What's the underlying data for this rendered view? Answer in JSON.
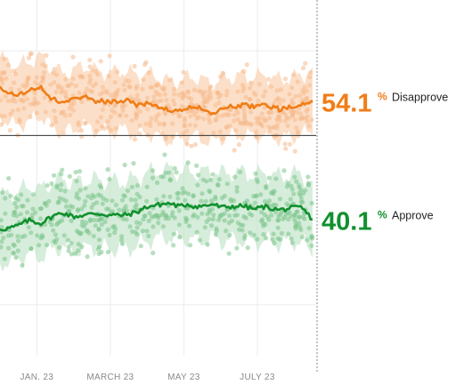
{
  "chart_data": {
    "type": "line",
    "title": "",
    "xlabel": "",
    "ylabel": "",
    "x_tick_labels": [
      "JAN. 23",
      "MARCH 23",
      "MAY 23",
      "JULY 23"
    ],
    "x_tick_positions": [
      0,
      2,
      4,
      6
    ],
    "x_range": [
      -1.0,
      7.6
    ],
    "ylim": [
      24,
      66
    ],
    "grid": true,
    "reference_line": 50,
    "colors": {
      "Disapprove": "#f07d16",
      "Approve": "#11902e",
      "disapprove_band": "#fbd2b0",
      "approve_band": "#c5e5cc",
      "disapprove_dots": "#f6b98c",
      "approve_dots": "#7cc48a",
      "grid": "#ececec",
      "reference": "#333333",
      "axis_text": "#8a8a8a"
    },
    "series": [
      {
        "name": "Disapprove",
        "latest_value": "54.1",
        "unit": "%",
        "x": [
          -1.0,
          -0.6,
          -0.2,
          0.1,
          0.4,
          0.7,
          1.0,
          1.3,
          1.6,
          2.0,
          2.4,
          2.7,
          3.0,
          3.3,
          3.6,
          3.9,
          4.1,
          4.3,
          4.6,
          4.8,
          5.0,
          5.3,
          5.6,
          5.9,
          6.2,
          6.6,
          6.9,
          7.2,
          7.5
        ],
        "values": [
          55.8,
          54.6,
          55.2,
          55.9,
          54.4,
          53.9,
          54.2,
          54.8,
          54.1,
          53.9,
          54.2,
          53.6,
          53.8,
          53.4,
          52.9,
          53.0,
          53.3,
          53.4,
          52.9,
          52.6,
          53.2,
          53.4,
          53.6,
          53.4,
          53.6,
          53.1,
          53.3,
          53.6,
          54.1
        ],
        "band_half_width": 3.5
      },
      {
        "name": "Approve",
        "latest_value": "40.1",
        "unit": "%",
        "x": [
          -1.0,
          -0.6,
          -0.2,
          0.1,
          0.4,
          0.7,
          1.0,
          1.3,
          1.6,
          2.0,
          2.4,
          2.7,
          3.0,
          3.3,
          3.6,
          3.9,
          4.1,
          4.3,
          4.6,
          4.8,
          5.0,
          5.3,
          5.6,
          5.9,
          6.2,
          6.6,
          6.9,
          7.2,
          7.5
        ],
        "values": [
          38.9,
          39.2,
          40.0,
          39.6,
          40.4,
          40.9,
          40.4,
          40.6,
          40.8,
          40.6,
          40.6,
          40.9,
          41.6,
          41.8,
          42.0,
          41.6,
          41.9,
          41.6,
          41.7,
          41.9,
          41.5,
          41.6,
          41.7,
          41.3,
          41.6,
          41.2,
          41.4,
          41.5,
          40.1
        ],
        "band_half_width": 4.0
      }
    ]
  }
}
